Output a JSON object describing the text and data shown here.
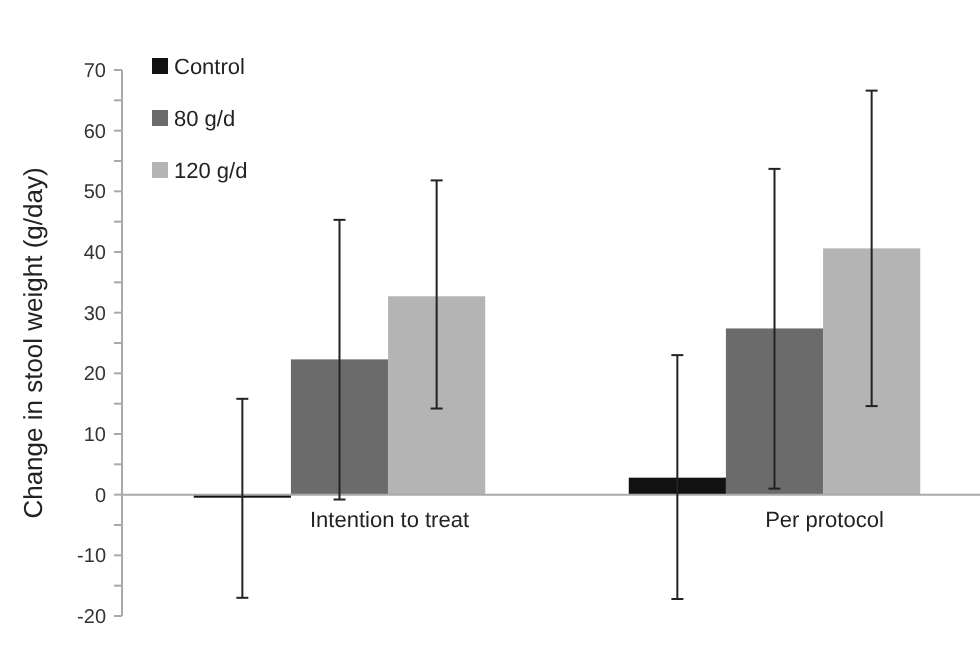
{
  "chart_data": {
    "type": "bar",
    "ylabel": "Change in stool weight (g/day)",
    "categories": [
      "Intention to treat",
      "Per protocol"
    ],
    "series": [
      {
        "name": "Control",
        "color": "#111111",
        "values": [
          -0.5,
          2.8
        ],
        "errors": [
          [
            -17,
            15.8
          ],
          [
            -17.2,
            23
          ]
        ]
      },
      {
        "name": "80 g/d",
        "color": "#6b6b6b",
        "values": [
          22.3,
          27.4
        ],
        "errors": [
          [
            -0.8,
            45.3
          ],
          [
            1,
            53.7
          ]
        ]
      },
      {
        "name": "120 g/d",
        "color": "#b4b4b4",
        "values": [
          32.7,
          40.6
        ],
        "errors": [
          [
            14.2,
            51.8
          ],
          [
            14.6,
            66.6
          ]
        ]
      }
    ],
    "ylim": [
      -20,
      70
    ],
    "yticks": [
      -20,
      {
        "value": -15,
        "label": null
      },
      -10,
      {
        "value": -5,
        "label": null
      },
      0,
      {
        "value": 5,
        "label": null
      },
      10,
      {
        "value": 15,
        "label": null
      },
      20,
      {
        "value": 25,
        "label": null
      },
      30,
      {
        "value": 35,
        "label": null
      },
      40,
      {
        "value": 45,
        "label": null
      },
      50,
      {
        "value": 55,
        "label": null
      },
      60,
      {
        "value": 65,
        "label": null
      },
      70
    ],
    "grid": false,
    "legend": "top left"
  }
}
